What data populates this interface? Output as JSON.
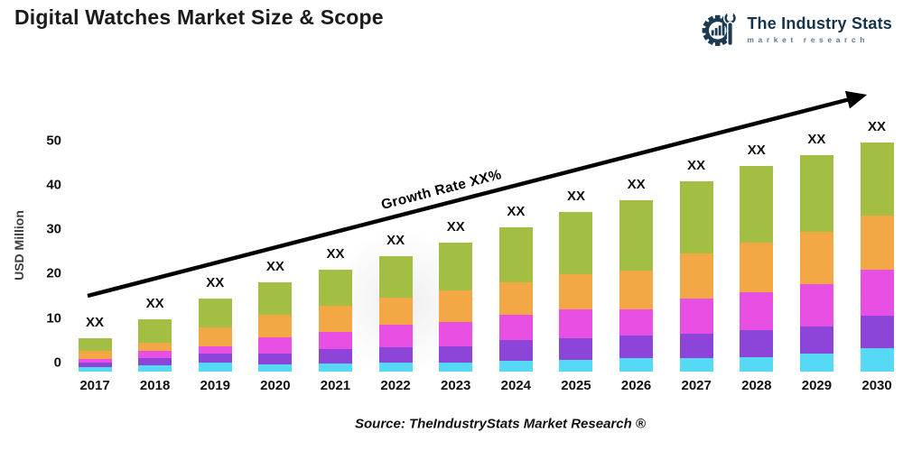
{
  "header": {
    "title": "Digital Watches Market Size & Scope",
    "logo": {
      "brand": "The Industry Stats",
      "tagline": "market research",
      "brand_color": "#16344c",
      "icon": "gear-wrench-barchart-icon"
    }
  },
  "chart": {
    "y_axis_title": "USD Million",
    "growth_annotation": "Growth Rate XX%",
    "source_note": "Source: TheIndustryStats Market Research ®"
  },
  "chart_data": {
    "type": "bar",
    "stacked": true,
    "title": "Digital Watches Market Size & Scope",
    "xlabel": "",
    "ylabel": "USD Million",
    "ylim": [
      0,
      50
    ],
    "y_ticks": [
      0,
      10,
      20,
      30,
      40,
      50
    ],
    "grid": false,
    "legend": "none",
    "annotation": "Growth Rate XX%",
    "note": "All bar value labels are shown as XX in the chart; numeric series values are estimated from the axis scale.",
    "categories": [
      "2017",
      "2018",
      "2019",
      "2020",
      "2021",
      "2022",
      "2023",
      "2024",
      "2025",
      "2026",
      "2027",
      "2028",
      "2029",
      "2030"
    ],
    "bar_labels": [
      "XX",
      "XX",
      "XX",
      "XX",
      "XX",
      "XX",
      "XX",
      "XX",
      "XX",
      "XX",
      "XX",
      "XX",
      "XX",
      "XX"
    ],
    "series": [
      {
        "name": "segment-1-cyan",
        "color": "#55d9f4",
        "values": [
          1.0,
          1.4,
          2.0,
          1.6,
          1.8,
          2.0,
          2.0,
          2.5,
          2.7,
          3.0,
          3.0,
          3.2,
          4.1,
          5.3
        ]
      },
      {
        "name": "segment-2-purple",
        "color": "#8d44d9",
        "values": [
          1.0,
          1.7,
          2.1,
          2.4,
          3.2,
          3.4,
          3.7,
          4.6,
          4.9,
          5.1,
          5.6,
          6.1,
          6.1,
          7.3
        ]
      },
      {
        "name": "segment-3-magenta",
        "color": "#e84fe3",
        "values": [
          0.8,
          1.6,
          1.6,
          3.7,
          3.9,
          5.1,
          5.5,
          5.6,
          6.3,
          5.9,
          7.8,
          8.6,
          9.5,
          10.3
        ]
      },
      {
        "name": "segment-4-orange",
        "color": "#f3a845",
        "values": [
          1.9,
          1.8,
          4.3,
          5.1,
          5.9,
          6.1,
          7.0,
          7.4,
          8.1,
          8.8,
          10.1,
          11.2,
          11.7,
          12.2
        ]
      },
      {
        "name": "segment-5-green",
        "color": "#a2bf44",
        "values": [
          2.9,
          5.3,
          6.4,
          7.2,
          8.1,
          9.4,
          10.8,
          12.4,
          13.9,
          15.8,
          16.2,
          17.2,
          17.2,
          16.4
        ]
      }
    ],
    "totals_estimated": [
      7.6,
      11.8,
      16.4,
      20.0,
      22.9,
      26.0,
      29.0,
      32.5,
      35.9,
      38.6,
      42.7,
      46.3,
      48.6,
      51.5
    ]
  }
}
